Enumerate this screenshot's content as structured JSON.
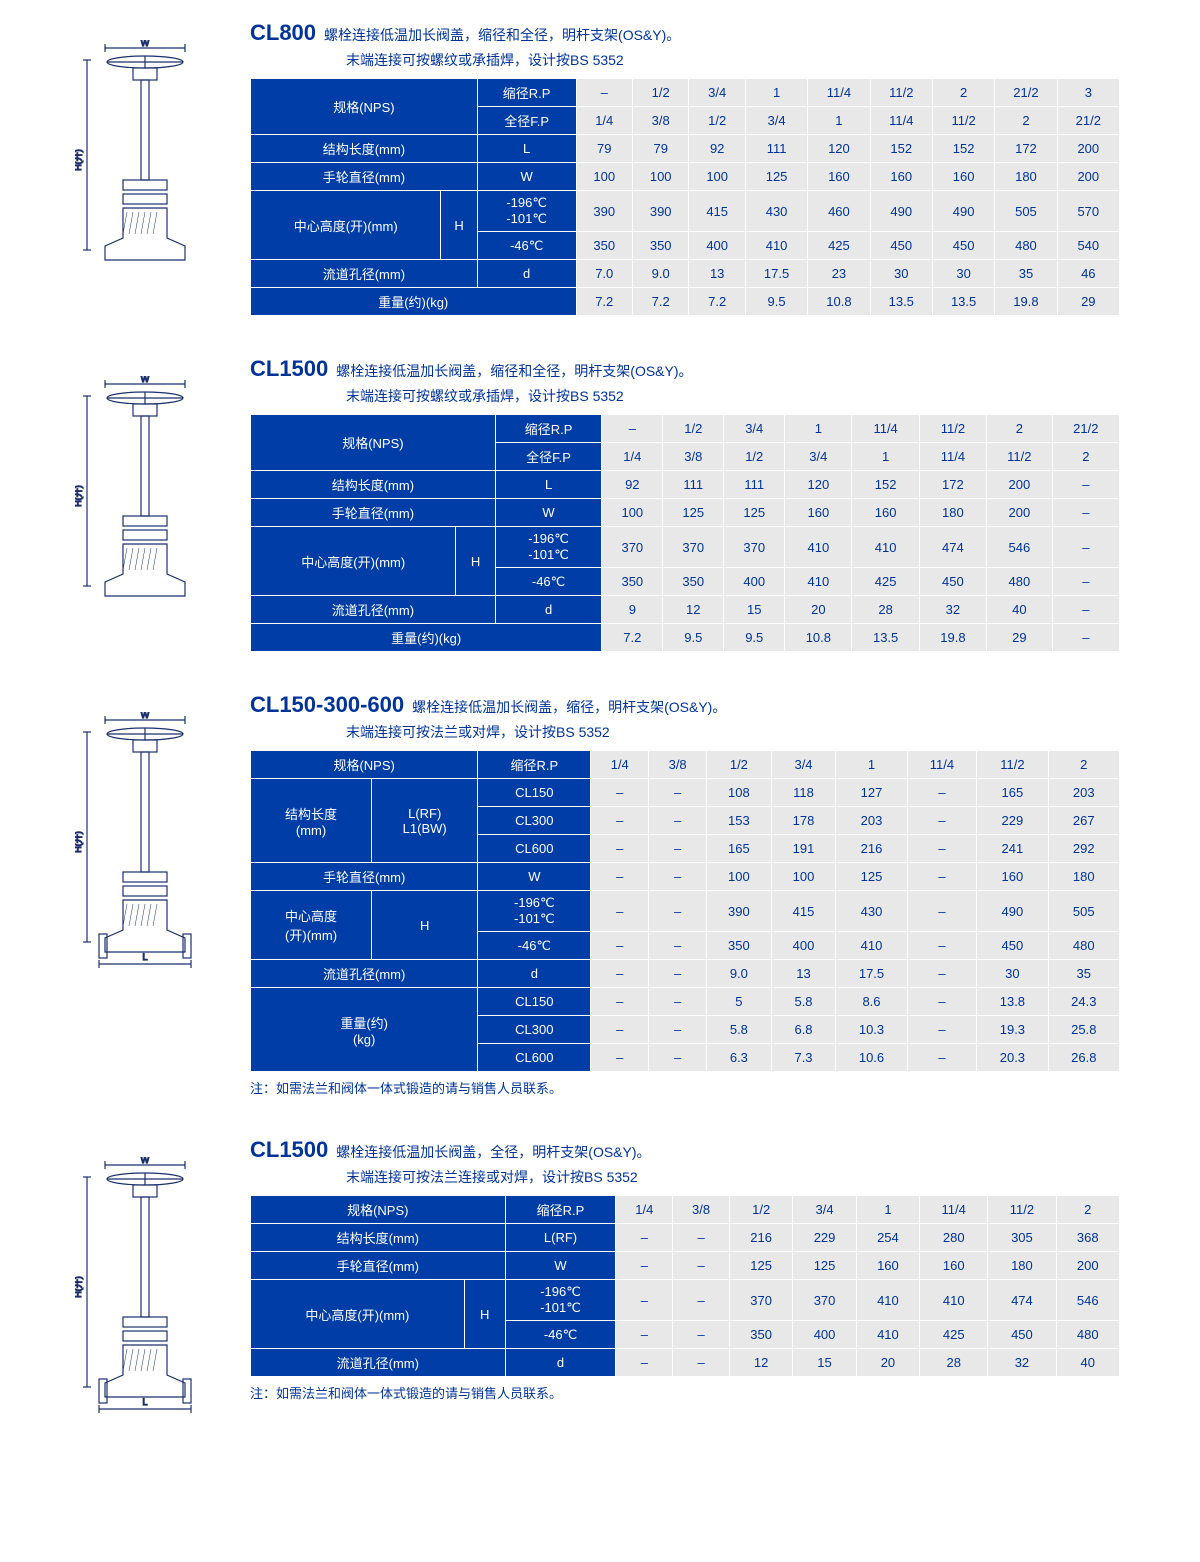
{
  "colors": {
    "header_bg": "#003da6",
    "header_text": "#ffffff",
    "data_bg": "#e8e8e8",
    "data_text": "#003399",
    "border": "#ffffff"
  },
  "typography": {
    "title_code_size_pt": 17,
    "title_desc_size_pt": 11,
    "cell_size_pt": 10
  },
  "sections": [
    {
      "code": "CL800",
      "desc1": "螺栓连接低温加长阀盖，缩径和全径，明杆支架(OS&Y)。",
      "desc2": "末端连接可按螺纹或承插焊，设计按BS 5352",
      "diagram": "valve",
      "table": {
        "header_cols": 3,
        "data_cols": 9,
        "rows": [
          {
            "h": [
              "规格(NPS)",
              "缩径R.P"
            ],
            "hspan": [
              {
                "r": 2,
                "c": 2
              }
            ],
            "d": [
              "–",
              "1/2",
              "3/4",
              "1",
              "11/4",
              "11/2",
              "2",
              "21/2",
              "3"
            ]
          },
          {
            "h": [
              "全径F.P"
            ],
            "d": [
              "1/4",
              "3/8",
              "1/2",
              "3/4",
              "1",
              "11/4",
              "11/2",
              "2",
              "21/2"
            ]
          },
          {
            "h": [
              "结构长度(mm)",
              "L"
            ],
            "hspan": [
              {
                "c": 2
              }
            ],
            "d": [
              "79",
              "79",
              "92",
              "111",
              "120",
              "152",
              "152",
              "172",
              "200"
            ]
          },
          {
            "h": [
              "手轮直径(mm)",
              "W"
            ],
            "hspan": [
              {
                "c": 2
              }
            ],
            "d": [
              "100",
              "100",
              "100",
              "125",
              "160",
              "160",
              "160",
              "180",
              "200"
            ]
          },
          {
            "h": [
              "中心高度(开)(mm)",
              "H",
              "-196℃\n-101℃"
            ],
            "hspan": [
              {
                "r": 2,
                "c": 1
              },
              {
                "r": 2,
                "c": 1
              }
            ],
            "d": [
              "390",
              "390",
              "415",
              "430",
              "460",
              "490",
              "490",
              "505",
              "570"
            ]
          },
          {
            "h": [
              "-46℃"
            ],
            "d": [
              "350",
              "350",
              "400",
              "410",
              "425",
              "450",
              "450",
              "480",
              "540"
            ]
          },
          {
            "h": [
              "流道孔径(mm)",
              "d"
            ],
            "hspan": [
              {
                "c": 2
              }
            ],
            "d": [
              "7.0",
              "9.0",
              "13",
              "17.5",
              "23",
              "30",
              "30",
              "35",
              "46"
            ]
          },
          {
            "h": [
              "重量(约)(kg)"
            ],
            "hspan": [
              {
                "c": 3
              }
            ],
            "d": [
              "7.2",
              "7.2",
              "7.2",
              "9.5",
              "10.8",
              "13.5",
              "13.5",
              "19.8",
              "29"
            ]
          }
        ]
      }
    },
    {
      "code": "CL1500",
      "desc1": "螺栓连接低温加长阀盖，缩径和全径，明杆支架(OS&Y)。",
      "desc2": "末端连接可按螺纹或承插焊，设计按BS 5352",
      "diagram": "valve",
      "table": {
        "header_cols": 3,
        "data_cols": 8,
        "rows": [
          {
            "h": [
              "规格(NPS)",
              "缩径R.P"
            ],
            "hspan": [
              {
                "r": 2,
                "c": 2
              }
            ],
            "d": [
              "–",
              "1/2",
              "3/4",
              "1",
              "11/4",
              "11/2",
              "2",
              "21/2"
            ]
          },
          {
            "h": [
              "全径F.P"
            ],
            "d": [
              "1/4",
              "3/8",
              "1/2",
              "3/4",
              "1",
              "11/4",
              "11/2",
              "2"
            ]
          },
          {
            "h": [
              "结构长度(mm)",
              "L"
            ],
            "hspan": [
              {
                "c": 2
              }
            ],
            "d": [
              "92",
              "111",
              "111",
              "120",
              "152",
              "172",
              "200",
              "–"
            ]
          },
          {
            "h": [
              "手轮直径(mm)",
              "W"
            ],
            "hspan": [
              {
                "c": 2
              }
            ],
            "d": [
              "100",
              "125",
              "125",
              "160",
              "160",
              "180",
              "200",
              "–"
            ]
          },
          {
            "h": [
              "中心高度(开)(mm)",
              "H",
              "-196℃\n-101℃"
            ],
            "hspan": [
              {
                "r": 2,
                "c": 1
              },
              {
                "r": 2,
                "c": 1
              }
            ],
            "d": [
              "370",
              "370",
              "370",
              "410",
              "410",
              "474",
              "546",
              "–"
            ]
          },
          {
            "h": [
              "-46℃"
            ],
            "d": [
              "350",
              "350",
              "400",
              "410",
              "425",
              "450",
              "480",
              "–"
            ]
          },
          {
            "h": [
              "流道孔径(mm)",
              "d"
            ],
            "hspan": [
              {
                "c": 2
              }
            ],
            "d": [
              "9",
              "12",
              "15",
              "20",
              "28",
              "32",
              "40",
              "–"
            ]
          },
          {
            "h": [
              "重量(约)(kg)"
            ],
            "hspan": [
              {
                "c": 3
              }
            ],
            "d": [
              "7.2",
              "9.5",
              "9.5",
              "10.8",
              "13.5",
              "19.8",
              "29",
              "–"
            ]
          }
        ]
      }
    },
    {
      "code": "CL150-300-600",
      "desc1": "螺栓连接低温加长阀盖，缩径，明杆支架(OS&Y)。",
      "desc2": "末端连接可按法兰或对焊，设计按BS 5352",
      "diagram": "valve-flange",
      "note": "注：如需法兰和阀体一体式锻造的请与销售人员联系。",
      "table": {
        "header_cols": 3,
        "data_cols": 8,
        "rows": [
          {
            "h": [
              "规格(NPS)",
              "缩径R.P"
            ],
            "hspan": [
              {
                "c": 2
              }
            ],
            "d": [
              "1/4",
              "3/8",
              "1/2",
              "3/4",
              "1",
              "11/4",
              "11/2",
              "2"
            ]
          },
          {
            "h": [
              "结构长度\n(mm)",
              "L(RF)\nL1(BW)",
              "CL150"
            ],
            "hspan": [
              {
                "r": 3,
                "c": 1
              },
              {
                "r": 3,
                "c": 1
              }
            ],
            "d": [
              "–",
              "–",
              "108",
              "118",
              "127",
              "–",
              "165",
              "203"
            ]
          },
          {
            "h": [
              "CL300"
            ],
            "d": [
              "–",
              "–",
              "153",
              "178",
              "203",
              "–",
              "229",
              "267"
            ]
          },
          {
            "h": [
              "CL600"
            ],
            "d": [
              "–",
              "–",
              "165",
              "191",
              "216",
              "–",
              "241",
              "292"
            ]
          },
          {
            "h": [
              "手轮直径(mm)",
              "W"
            ],
            "hspan": [
              {
                "c": 2
              }
            ],
            "d": [
              "–",
              "–",
              "100",
              "100",
              "125",
              "–",
              "160",
              "180"
            ]
          },
          {
            "h": [
              "中心高度\n(开)(mm)",
              "H",
              "-196℃\n-101℃"
            ],
            "hspan": [
              {
                "r": 2,
                "c": 1
              },
              {
                "r": 2,
                "c": 1
              }
            ],
            "d": [
              "–",
              "–",
              "390",
              "415",
              "430",
              "–",
              "490",
              "505"
            ]
          },
          {
            "h": [
              "-46℃"
            ],
            "d": [
              "–",
              "–",
              "350",
              "400",
              "410",
              "–",
              "450",
              "480"
            ]
          },
          {
            "h": [
              "流道孔径(mm)",
              "d"
            ],
            "hspan": [
              {
                "c": 2
              }
            ],
            "d": [
              "–",
              "–",
              "9.0",
              "13",
              "17.5",
              "–",
              "30",
              "35"
            ]
          },
          {
            "h": [
              "重量(约)\n(kg)",
              "CL150"
            ],
            "hspan": [
              {
                "r": 3,
                "c": 2
              }
            ],
            "d": [
              "–",
              "–",
              "5",
              "5.8",
              "8.6",
              "–",
              "13.8",
              "24.3"
            ]
          },
          {
            "h": [
              "CL300"
            ],
            "d": [
              "–",
              "–",
              "5.8",
              "6.8",
              "10.3",
              "–",
              "19.3",
              "25.8"
            ]
          },
          {
            "h": [
              "CL600"
            ],
            "d": [
              "–",
              "–",
              "6.3",
              "7.3",
              "10.6",
              "–",
              "20.3",
              "26.8"
            ]
          }
        ]
      }
    },
    {
      "code": "CL1500",
      "desc1": "螺栓连接低温加长阀盖，全径，明杆支架(OS&Y)。",
      "desc2": "末端连接可按法兰连接或对焊，设计按BS 5352",
      "diagram": "valve-flange",
      "note": "注：如需法兰和阀体一体式锻造的请与销售人员联系。",
      "table": {
        "header_cols": 3,
        "data_cols": 8,
        "rows": [
          {
            "h": [
              "规格(NPS)",
              "缩径R.P"
            ],
            "hspan": [
              {
                "c": 2
              }
            ],
            "d": [
              "1/4",
              "3/8",
              "1/2",
              "3/4",
              "1",
              "11/4",
              "11/2",
              "2"
            ]
          },
          {
            "h": [
              "结构长度(mm)",
              "L(RF)"
            ],
            "hspan": [
              {
                "c": 2
              }
            ],
            "d": [
              "–",
              "–",
              "216",
              "229",
              "254",
              "280",
              "305",
              "368"
            ]
          },
          {
            "h": [
              "手轮直径(mm)",
              "W"
            ],
            "hspan": [
              {
                "c": 2
              }
            ],
            "d": [
              "–",
              "–",
              "125",
              "125",
              "160",
              "160",
              "180",
              "200"
            ]
          },
          {
            "h": [
              "中心高度(开)(mm)",
              "H",
              "-196℃\n-101℃"
            ],
            "hspan": [
              {
                "r": 2,
                "c": 1
              },
              {
                "r": 2,
                "c": 1
              }
            ],
            "d": [
              "–",
              "–",
              "370",
              "370",
              "410",
              "410",
              "474",
              "546"
            ]
          },
          {
            "h": [
              "-46℃"
            ],
            "d": [
              "–",
              "–",
              "350",
              "400",
              "410",
              "425",
              "450",
              "480"
            ]
          },
          {
            "h": [
              "流道孔径(mm)",
              "d"
            ],
            "hspan": [
              {
                "c": 2
              }
            ],
            "d": [
              "–",
              "–",
              "12",
              "15",
              "20",
              "28",
              "32",
              "40"
            ]
          }
        ]
      }
    }
  ]
}
